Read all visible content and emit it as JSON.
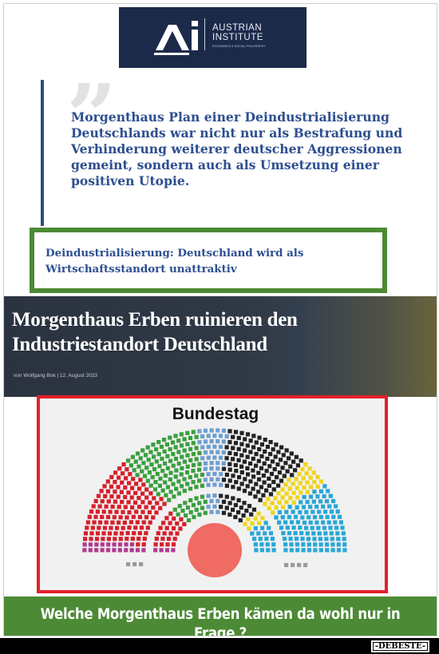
{
  "logo": {
    "mark": "Ai",
    "name_line1": "AUSTRIAN",
    "name_line2": "INSTITUTE",
    "tagline": "ECONOMICS & SOCIAL PHILOSOPHY"
  },
  "quote": {
    "text": "Morgenthaus Plan einer Deindustrialisierung Deutschlands war nicht nur als Bestrafung und Verhinderung weiterer deutscher Aggressionen gemeint, sondern auch als Umsetzung einer positiven Utopie."
  },
  "green_headline": "Deindustrialisierung: Deutschland wird als Wirtschaftsstandort unattraktiv",
  "article": {
    "title": "Morgenthaus Erben ruinieren den Industriestandort Deutschland",
    "byline": "von Wolfgang Bok  |  12. August 2023"
  },
  "parliament": {
    "title": "Bundestag",
    "colors": {
      "left": "#b03a8f",
      "spd": "#d5202c",
      "greens": "#3a9f3e",
      "ssw": "#6f9fd0",
      "cdu": "#222222",
      "fdp": "#f1d51b",
      "afd": "#28a7d6",
      "other": "#9a9a9a",
      "podium": "#ef6b63"
    },
    "groups": [
      "left",
      "spd",
      "greens",
      "ssw",
      "cdu",
      "fdp",
      "afd"
    ]
  },
  "question": "Welche Morgenthaus Erben kämen da wohl nur in Frage ?",
  "watermark": "-DEBESTE-"
}
